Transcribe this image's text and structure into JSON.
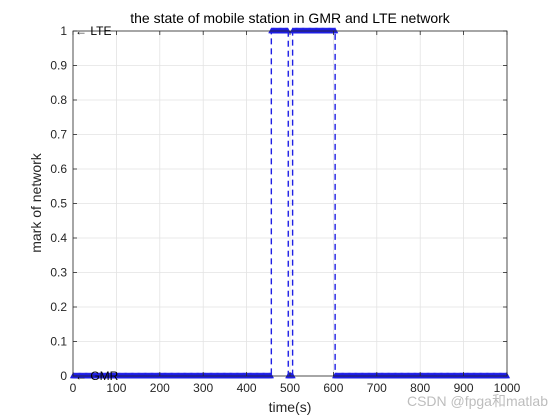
{
  "chart_data": {
    "type": "line",
    "title": "the state of mobile station in GMR and LTE network",
    "xlabel": "time(s)",
    "ylabel": "mark of network",
    "xlim": [
      0,
      1000
    ],
    "ylim": [
      0,
      1
    ],
    "xticks": [
      0,
      100,
      200,
      300,
      400,
      500,
      600,
      700,
      800,
      900,
      1000
    ],
    "yticks": [
      0,
      0.1,
      0.2,
      0.3,
      0.4,
      0.5,
      0.6,
      0.7,
      0.8,
      0.9,
      1
    ],
    "grid": true,
    "series": [
      {
        "line_style": "dashed",
        "marker": "triangle-up",
        "color": "#1f1fe6",
        "x": [
          0,
          457,
          457,
          496,
          496,
          506,
          506,
          604,
          604,
          1000
        ],
        "y": [
          0,
          0,
          1,
          1,
          0,
          0,
          1,
          1,
          0,
          0
        ]
      }
    ],
    "annotations": [
      {
        "text": "← LTE",
        "x": 0,
        "y": 1
      },
      {
        "text": "← GMR",
        "x": 0,
        "y": 0
      }
    ]
  },
  "watermark": "CSDN @fpga和matlab"
}
